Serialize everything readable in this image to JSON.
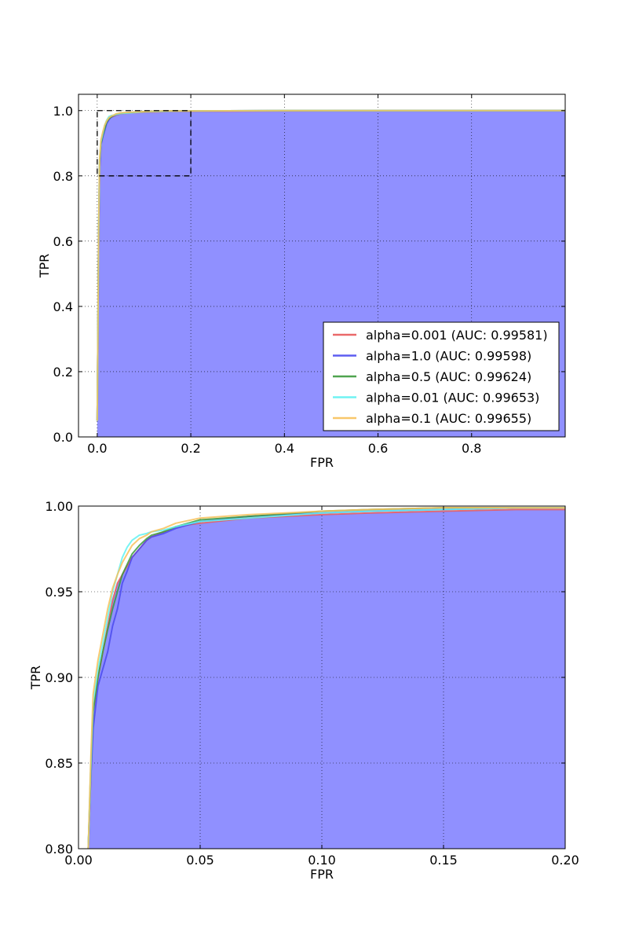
{
  "chart_data": [
    {
      "type": "line",
      "xlabel": "FPR",
      "ylabel": "TPR",
      "xlim": [
        -0.04,
        1.0
      ],
      "ylim": [
        0.0,
        1.05
      ],
      "xticks": [
        0.0,
        0.2,
        0.4,
        0.6,
        0.8
      ],
      "xtick_labels": [
        "0.0",
        "0.2",
        "0.4",
        "0.6",
        "0.8"
      ],
      "yticks": [
        0.0,
        0.2,
        0.4,
        0.6,
        0.8,
        1.0
      ],
      "ytick_labels": [
        "0.0",
        "0.2",
        "0.4",
        "0.6",
        "0.8",
        "1.0"
      ],
      "grid": true,
      "legend_position": "lower-right",
      "fill_color": "#9090ff",
      "zoom_box": {
        "x": [
          0.0,
          0.2
        ],
        "y": [
          0.8,
          1.0
        ]
      },
      "series": [
        {
          "name": "alpha=0.001 (AUC: 0.99581)",
          "color": "#e8595a",
          "x": [
            0,
            0.003,
            0.005,
            0.008,
            0.012,
            0.016,
            0.02,
            0.025,
            0.03,
            0.035,
            0.04,
            0.05,
            0.07,
            0.1,
            0.15,
            0.2,
            0.4,
            0.6,
            0.8,
            1.0
          ],
          "y": [
            0.05,
            0.6,
            0.82,
            0.9,
            0.93,
            0.95,
            0.965,
            0.975,
            0.98,
            0.983,
            0.986,
            0.99,
            0.993,
            0.995,
            0.997,
            0.998,
            0.999,
            1.0,
            1.0,
            1.0
          ]
        },
        {
          "name": "alpha=1.0 (AUC: 0.99598)",
          "color": "#4b4bef",
          "x": [
            0,
            0.003,
            0.005,
            0.008,
            0.012,
            0.016,
            0.02,
            0.025,
            0.03,
            0.035,
            0.04,
            0.05,
            0.07,
            0.1,
            0.15,
            0.2,
            0.4,
            0.6,
            0.8,
            1.0
          ],
          "y": [
            0.05,
            0.6,
            0.82,
            0.895,
            0.92,
            0.94,
            0.96,
            0.972,
            0.98,
            0.984,
            0.987,
            0.991,
            0.994,
            0.996,
            0.998,
            0.999,
            1.0,
            1.0,
            1.0,
            1.0
          ]
        },
        {
          "name": "alpha=0.5 (AUC: 0.99624)",
          "color": "#3c9a3c",
          "x": [
            0,
            0.003,
            0.005,
            0.008,
            0.012,
            0.016,
            0.02,
            0.025,
            0.03,
            0.035,
            0.04,
            0.05,
            0.07,
            0.1,
            0.15,
            0.2,
            0.4,
            0.6,
            0.8,
            1.0
          ],
          "y": [
            0.05,
            0.62,
            0.84,
            0.9,
            0.925,
            0.945,
            0.965,
            0.975,
            0.981,
            0.985,
            0.988,
            0.992,
            0.994,
            0.997,
            0.999,
            0.999,
            1.0,
            1.0,
            1.0,
            1.0
          ]
        },
        {
          "name": "alpha=0.01 (AUC: 0.99653)",
          "color": "#5ff2f2",
          "x": [
            0,
            0.003,
            0.005,
            0.008,
            0.012,
            0.016,
            0.02,
            0.025,
            0.03,
            0.035,
            0.04,
            0.05,
            0.07,
            0.1,
            0.15,
            0.2,
            0.4,
            0.6,
            0.8,
            1.0
          ],
          "y": [
            0.05,
            0.62,
            0.845,
            0.905,
            0.93,
            0.955,
            0.97,
            0.982,
            0.985,
            0.986,
            0.988,
            0.991,
            0.993,
            0.996,
            0.998,
            0.999,
            1.0,
            1.0,
            1.0,
            1.0
          ]
        },
        {
          "name": "alpha=0.1 (AUC: 0.99655)",
          "color": "#f7c15a",
          "x": [
            0,
            0.003,
            0.005,
            0.008,
            0.012,
            0.016,
            0.02,
            0.025,
            0.03,
            0.035,
            0.04,
            0.05,
            0.07,
            0.1,
            0.15,
            0.2,
            0.4,
            0.6,
            0.8,
            1.0
          ],
          "y": [
            0.05,
            0.63,
            0.85,
            0.91,
            0.935,
            0.955,
            0.968,
            0.978,
            0.983,
            0.986,
            0.99,
            0.993,
            0.995,
            0.997,
            0.999,
            0.999,
            1.0,
            1.0,
            1.0,
            1.0
          ]
        }
      ]
    },
    {
      "type": "line",
      "xlabel": "FPR",
      "ylabel": "TPR",
      "xlim": [
        0.0,
        0.2
      ],
      "ylim": [
        0.8,
        1.0
      ],
      "xticks": [
        0.0,
        0.05,
        0.1,
        0.15,
        0.2
      ],
      "xtick_labels": [
        "0.00",
        "0.05",
        "0.10",
        "0.15",
        "0.20"
      ],
      "yticks": [
        0.8,
        0.85,
        0.9,
        0.95,
        1.0
      ],
      "ytick_labels": [
        "0.80",
        "0.85",
        "0.90",
        "0.95",
        "1.00"
      ],
      "grid": true,
      "fill_color": "#9090ff",
      "series": [
        {
          "name": "alpha=0.001 (AUC: 0.99581)",
          "color": "#e8595a",
          "x": [
            0.004,
            0.005,
            0.006,
            0.008,
            0.01,
            0.012,
            0.014,
            0.016,
            0.018,
            0.02,
            0.022,
            0.025,
            0.028,
            0.03,
            0.035,
            0.04,
            0.05,
            0.07,
            0.1,
            0.12,
            0.15,
            0.18,
            0.2
          ],
          "y": [
            0.8,
            0.84,
            0.88,
            0.9,
            0.915,
            0.93,
            0.945,
            0.955,
            0.96,
            0.965,
            0.97,
            0.975,
            0.98,
            0.982,
            0.985,
            0.988,
            0.99,
            0.993,
            0.995,
            0.996,
            0.997,
            0.998,
            0.998
          ]
        },
        {
          "name": "alpha=1.0 (AUC: 0.99598)",
          "color": "#4b4bef",
          "x": [
            0.004,
            0.005,
            0.006,
            0.008,
            0.01,
            0.012,
            0.014,
            0.016,
            0.018,
            0.02,
            0.022,
            0.025,
            0.028,
            0.03,
            0.035,
            0.04,
            0.05,
            0.07,
            0.1,
            0.12,
            0.15,
            0.18,
            0.2
          ],
          "y": [
            0.8,
            0.84,
            0.87,
            0.895,
            0.905,
            0.915,
            0.93,
            0.94,
            0.955,
            0.962,
            0.97,
            0.975,
            0.98,
            0.982,
            0.984,
            0.987,
            0.991,
            0.994,
            0.996,
            0.997,
            0.998,
            0.999,
            0.999
          ]
        },
        {
          "name": "alpha=0.5 (AUC: 0.99624)",
          "color": "#3c9a3c",
          "x": [
            0.004,
            0.005,
            0.006,
            0.008,
            0.01,
            0.012,
            0.014,
            0.016,
            0.018,
            0.02,
            0.022,
            0.025,
            0.028,
            0.03,
            0.035,
            0.04,
            0.05,
            0.07,
            0.1,
            0.12,
            0.15,
            0.18,
            0.2
          ],
          "y": [
            0.8,
            0.845,
            0.88,
            0.9,
            0.915,
            0.928,
            0.94,
            0.95,
            0.96,
            0.966,
            0.972,
            0.977,
            0.981,
            0.983,
            0.985,
            0.988,
            0.992,
            0.994,
            0.997,
            0.998,
            0.999,
            0.999,
            0.999
          ]
        },
        {
          "name": "alpha=0.01 (AUC: 0.99653)",
          "color": "#5ff2f2",
          "x": [
            0.004,
            0.005,
            0.006,
            0.008,
            0.01,
            0.012,
            0.014,
            0.016,
            0.018,
            0.02,
            0.022,
            0.025,
            0.028,
            0.03,
            0.035,
            0.04,
            0.05,
            0.07,
            0.1,
            0.12,
            0.15,
            0.18,
            0.2
          ],
          "y": [
            0.8,
            0.845,
            0.885,
            0.905,
            0.92,
            0.935,
            0.95,
            0.96,
            0.97,
            0.976,
            0.98,
            0.983,
            0.984,
            0.985,
            0.986,
            0.988,
            0.991,
            0.993,
            0.996,
            0.997,
            0.998,
            0.999,
            0.999
          ]
        },
        {
          "name": "alpha=0.1 (AUC: 0.99655)",
          "color": "#f7c15a",
          "x": [
            0.004,
            0.005,
            0.006,
            0.008,
            0.01,
            0.012,
            0.014,
            0.016,
            0.018,
            0.02,
            0.022,
            0.025,
            0.028,
            0.03,
            0.035,
            0.04,
            0.05,
            0.07,
            0.1,
            0.12,
            0.15,
            0.18,
            0.2
          ],
          "y": [
            0.8,
            0.85,
            0.89,
            0.91,
            0.925,
            0.94,
            0.952,
            0.96,
            0.967,
            0.972,
            0.977,
            0.981,
            0.983,
            0.985,
            0.987,
            0.99,
            0.993,
            0.995,
            0.997,
            0.998,
            0.999,
            0.999,
            0.999
          ]
        }
      ]
    }
  ]
}
